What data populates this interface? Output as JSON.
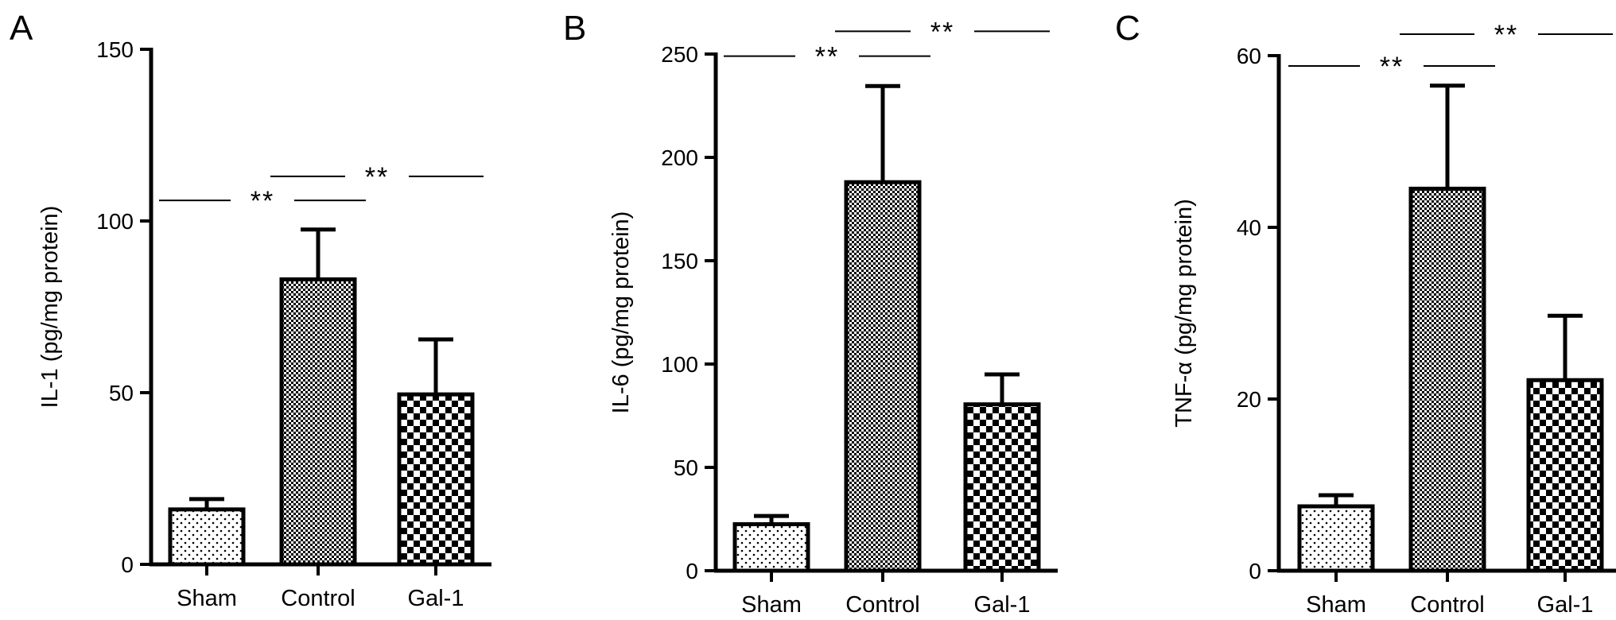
{
  "chart_data": [
    {
      "type": "bar",
      "panel": "A",
      "categories": [
        "Sham",
        "Control",
        "Gal-1"
      ],
      "values": [
        16,
        83,
        49.5
      ],
      "errors": [
        3,
        14.5,
        16
      ],
      "ylabel": "IL-1 (pg/mg protein)",
      "ylim": [
        0,
        150
      ],
      "yticks": [
        0,
        50,
        100,
        150
      ],
      "significance": [
        {
          "from": "Sham",
          "to": "Control",
          "label": "**",
          "y": 106
        },
        {
          "from": "Control",
          "to": "Gal-1",
          "label": "**",
          "y": 113
        }
      ]
    },
    {
      "type": "bar",
      "panel": "B",
      "categories": [
        "Sham",
        "Control",
        "Gal-1"
      ],
      "values": [
        22.5,
        188,
        80.5
      ],
      "errors": [
        4,
        46.5,
        14.5
      ],
      "ylabel": "IL-6 (pg/mg protein)",
      "ylim": [
        0,
        250
      ],
      "yticks": [
        0,
        50,
        100,
        150,
        200,
        250
      ],
      "significance": [
        {
          "from": "Sham",
          "to": "Control",
          "label": "**",
          "y": 249
        },
        {
          "from": "Control",
          "to": "Gal-1",
          "label": "**",
          "y": 261
        }
      ]
    },
    {
      "type": "bar",
      "panel": "C",
      "categories": [
        "Sham",
        "Control",
        "Gal-1"
      ],
      "values": [
        7.5,
        44.5,
        22.2
      ],
      "errors": [
        1.3,
        12,
        7.5
      ],
      "ylabel": "TNF-α (pg/mg protein)",
      "ylim": [
        0,
        60
      ],
      "yticks": [
        0,
        20,
        40,
        60
      ],
      "significance": [
        {
          "from": "Sham",
          "to": "Control",
          "label": "**",
          "y": 58.8
        },
        {
          "from": "Control",
          "to": "Gal-1",
          "label": "**",
          "y": 62.5
        }
      ]
    }
  ],
  "colors": {
    "ink": "#000000",
    "background": "#ffffff"
  },
  "fill_patterns": [
    "dots",
    "fine-checker",
    "coarse-checker"
  ]
}
